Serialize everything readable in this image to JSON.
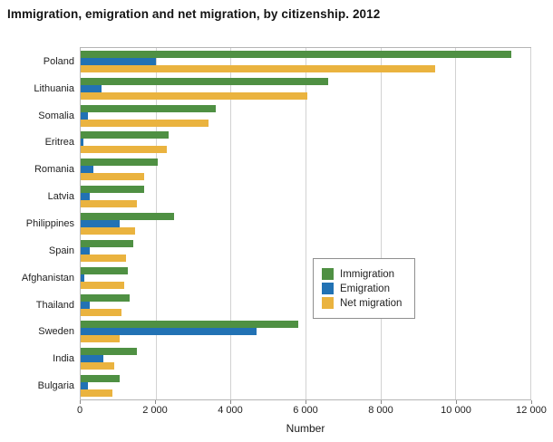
{
  "title": "Immigration, emigration and net migration, by citizenship. 2012",
  "chart_data": {
    "type": "bar",
    "orientation": "horizontal",
    "title": "Immigration, emigration and net migration, by citizenship. 2012",
    "xlabel": "Number",
    "xlim": [
      0,
      12000
    ],
    "xticks": [
      0,
      2000,
      4000,
      6000,
      8000,
      10000,
      12000
    ],
    "xtick_labels": [
      "0",
      "2 000",
      "4 000",
      "6 000",
      "8 000",
      "10 000",
      "12 000"
    ],
    "grid": true,
    "legend_position": "center-right",
    "categories": [
      "Poland",
      "Lithuania",
      "Somalia",
      "Eritrea",
      "Romania",
      "Latvia",
      "Philippines",
      "Spain",
      "Afghanistan",
      "Thailand",
      "Sweden",
      "India",
      "Bulgaria"
    ],
    "series": [
      {
        "name": "Immigration",
        "color": "#4f9043",
        "values": [
          11500,
          6600,
          3600,
          2350,
          2050,
          1700,
          2500,
          1400,
          1250,
          1300,
          5800,
          1500,
          1050
        ]
      },
      {
        "name": "Emigration",
        "color": "#2272b4",
        "values": [
          2000,
          550,
          200,
          80,
          350,
          250,
          1050,
          250,
          100,
          250,
          4700,
          600,
          200
        ]
      },
      {
        "name": "Net migration",
        "color": "#eab33f",
        "values": [
          9450,
          6050,
          3400,
          2300,
          1700,
          1500,
          1450,
          1200,
          1150,
          1100,
          1050,
          900,
          850
        ]
      }
    ]
  }
}
